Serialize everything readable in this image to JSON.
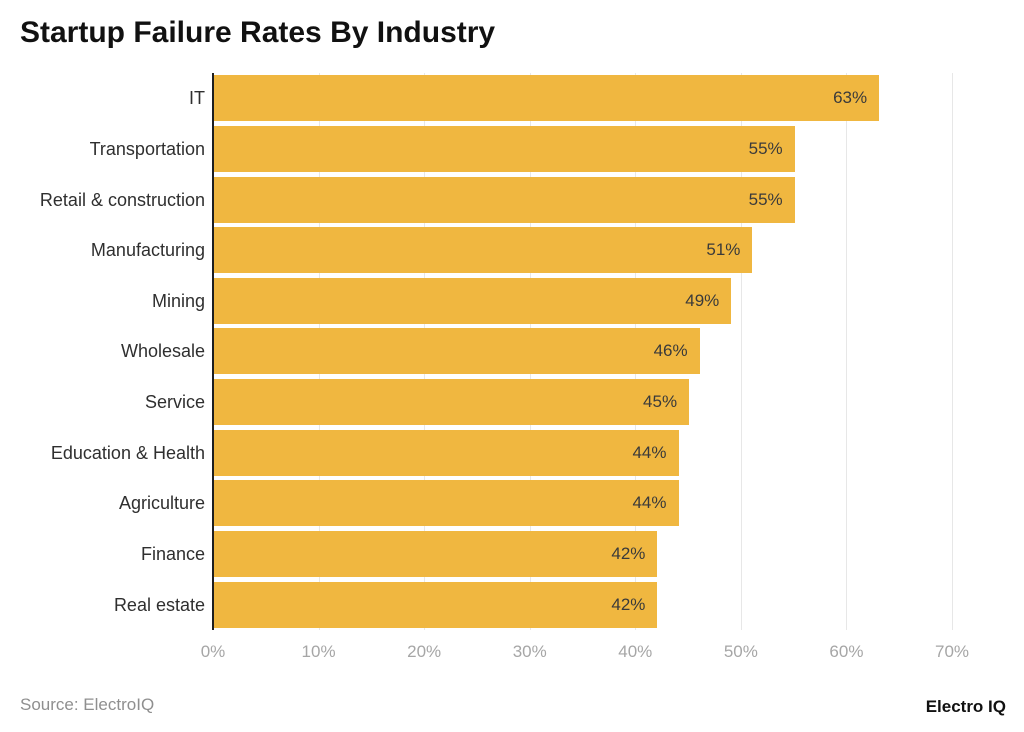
{
  "page": {
    "title": "Startup Failure Rates By Industry"
  },
  "chart_data": {
    "type": "bar",
    "orientation": "horizontal",
    "title": "Startup Failure Rates By Industry",
    "categories": [
      "IT",
      "Transportation",
      "Retail & construction",
      "Manufacturing",
      "Mining",
      "Wholesale",
      "Service",
      "Education & Health",
      "Agriculture",
      "Finance",
      "Real estate"
    ],
    "values": [
      63,
      55,
      55,
      51,
      49,
      46,
      45,
      44,
      44,
      42,
      42
    ],
    "value_labels": [
      "63%",
      "55%",
      "55%",
      "51%",
      "49%",
      "46%",
      "45%",
      "44%",
      "44%",
      "42%",
      "42%"
    ],
    "xlabel": "",
    "ylabel": "",
    "xlim": [
      0,
      70
    ],
    "x_tick_step": 10,
    "x_ticks": [
      "0%",
      "10%",
      "20%",
      "30%",
      "40%",
      "50%",
      "60%",
      "70%"
    ],
    "grid": "vertical-gridlines-behind-bars",
    "legend": false,
    "colors": {
      "bar": "#F0B740",
      "title": "#111111",
      "category_label": "#2F2F2F",
      "value_label": "#3A3A3A",
      "tick_label": "#A6A6A6",
      "gridline": "#E7E7E7",
      "axis_line": "#1F1F1F",
      "background": "#FFFFFF"
    }
  },
  "footer": {
    "source": "Source: ElectroIQ",
    "brand": "Electro IQ",
    "source_color": "#8F8F8F",
    "brand_color": "#111111"
  }
}
